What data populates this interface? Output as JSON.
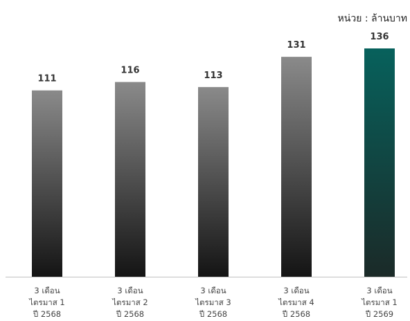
{
  "unit_label": "หน่วย : ล้านบาท",
  "colors": {
    "bar_top": "#8a8a8a",
    "bar_bottom": "#141414",
    "highlight_top": "#07615c",
    "highlight_bottom": "#1b2a28",
    "axis": "#bfbfbf"
  },
  "chart_data": {
    "type": "bar",
    "title": "",
    "xlabel": "",
    "ylabel": "",
    "ylim": [
      0,
      140
    ],
    "grid": false,
    "categories": [
      [
        "3 เดือน",
        "ไตรมาส 1",
        "ปี 2568"
      ],
      [
        "3 เดือน",
        "ไตรมาส 2",
        "ปี 2568"
      ],
      [
        "3 เดือน",
        "ไตรมาส 3",
        "ปี 2568"
      ],
      [
        "3 เดือน",
        "ไตรมาส 4",
        "ปี 2568"
      ],
      [
        "3 เดือน",
        "ไตรมาส 1",
        "ปี 2569"
      ]
    ],
    "values": [
      111,
      116,
      113,
      131,
      136
    ],
    "highlight_index": 4
  }
}
